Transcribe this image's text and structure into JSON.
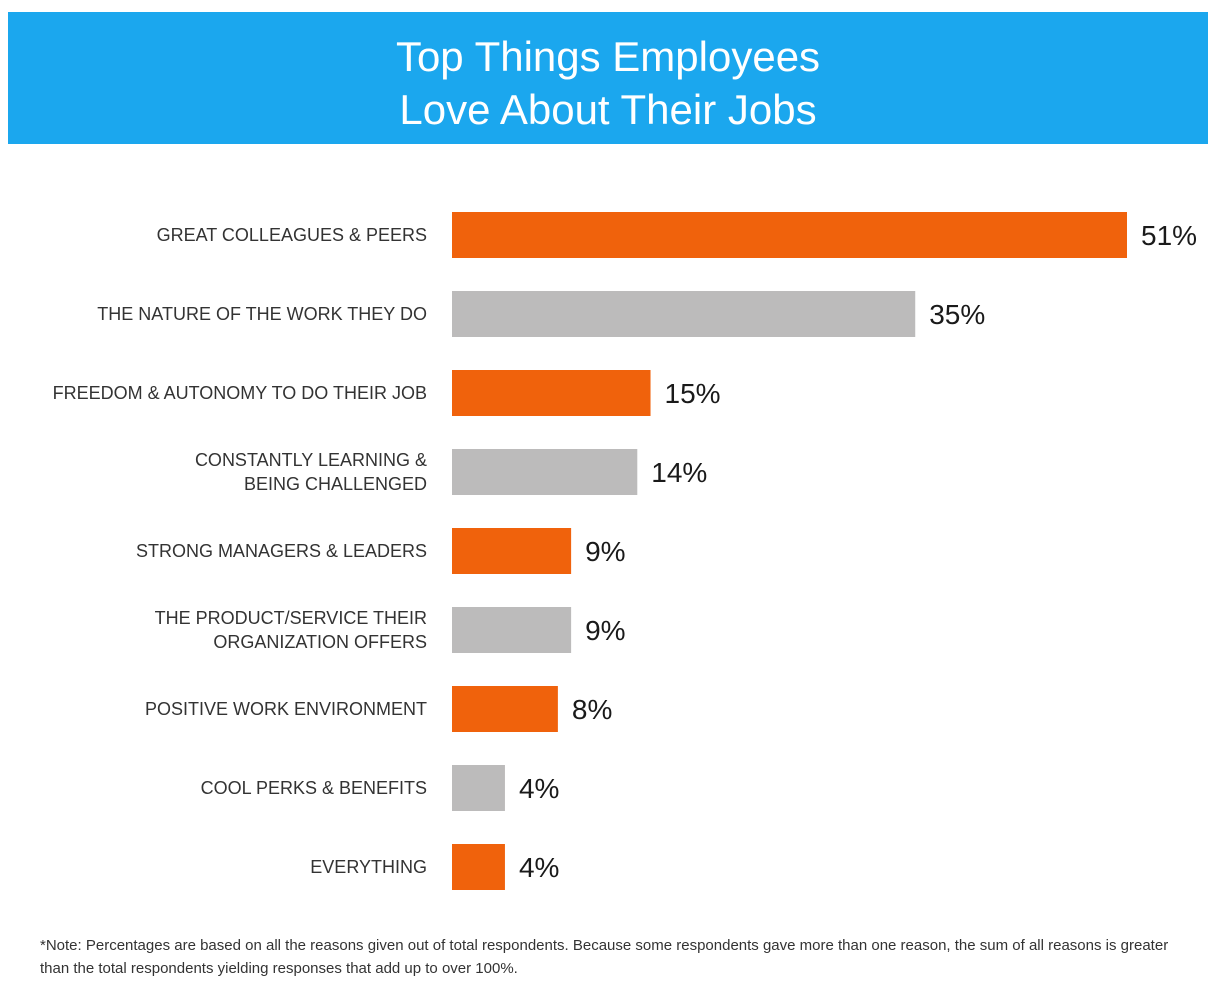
{
  "header": {
    "title_line1": "Top Things Employees",
    "title_line2": "Love About Their Jobs"
  },
  "colors": {
    "header_bg": "#1ba7ee",
    "accent": "#f0620c",
    "neutral": "#bcbbbb"
  },
  "chart_data": {
    "type": "bar",
    "orientation": "horizontal",
    "title": "Top Things Employees Love About Their Jobs",
    "xlim": [
      0,
      51
    ],
    "grid": false,
    "categories": [
      [
        "GREAT COLLEAGUES & PEERS"
      ],
      [
        "THE NATURE OF THE WORK THEY DO"
      ],
      [
        "FREEDOM & AUTONOMY TO DO THEIR JOB"
      ],
      [
        "CONSTANTLY LEARNING &",
        "BEING CHALLENGED"
      ],
      [
        "STRONG MANAGERS & LEADERS"
      ],
      [
        "THE PRODUCT/SERVICE THEIR",
        "ORGANIZATION OFFERS"
      ],
      [
        "POSITIVE WORK ENVIRONMENT"
      ],
      [
        "COOL PERKS & BENEFITS"
      ],
      [
        "EVERYTHING"
      ]
    ],
    "values": [
      51,
      35,
      15,
      14,
      9,
      9,
      8,
      4,
      4
    ],
    "value_labels": [
      "51%",
      "35%",
      "15%",
      "14%",
      "9%",
      "9%",
      "8%",
      "4%",
      "4%"
    ],
    "bar_colors": [
      "#f0620c",
      "#bcbbbb",
      "#f0620c",
      "#bcbbbb",
      "#f0620c",
      "#bcbbbb",
      "#f0620c",
      "#bcbbbb",
      "#f0620c"
    ]
  },
  "note": {
    "text": "*Note: Percentages are based on all the reasons given out of total respondents. Because some respondents gave more than one reason, the sum of all reasons is greater than the total respondents yielding responses that add up to over 100%."
  }
}
